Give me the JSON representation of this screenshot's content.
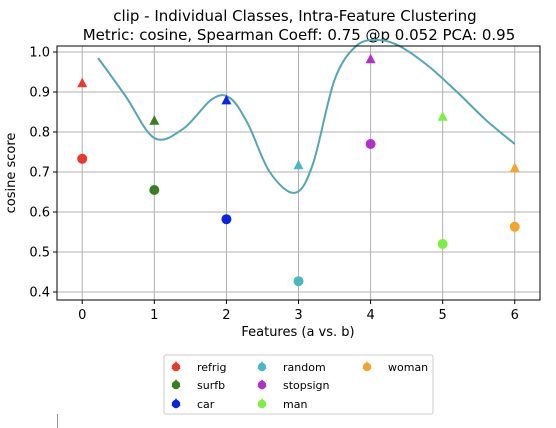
{
  "chart_data": {
    "type": "scatter",
    "title_line1": "clip - Individual Classes, Intra-Feature Clustering",
    "title_line2": "Metric: cosine, Spearman Coeff: 0.75 @p 0.052 PCA: 0.95",
    "xlabel": "Features (a vs. b)",
    "ylabel": "cosine score",
    "xlim": [
      -0.35,
      6.35
    ],
    "ylim": [
      0.38,
      1.015
    ],
    "x_ticks": [
      0,
      1,
      2,
      3,
      4,
      5,
      6
    ],
    "x_tick_labels": [
      "0",
      "1",
      "2",
      "3",
      "4",
      "5",
      "6"
    ],
    "y_ticks": [
      0.4,
      0.5,
      0.6,
      0.7,
      0.8,
      0.9,
      1.0
    ],
    "y_tick_labels": [
      "0.4",
      "0.5",
      "0.6",
      "0.7",
      "0.8",
      "0.9",
      "1.0"
    ],
    "grid": true,
    "legend_position": "below",
    "series": [
      {
        "name": "refrig",
        "color": "#e8392a",
        "x": 0,
        "triangle": 0.922,
        "circle": 0.733
      },
      {
        "name": "surfb",
        "color": "#3a7d22",
        "x": 1,
        "triangle": 0.828,
        "circle": 0.655
      },
      {
        "name": "car",
        "color": "#0a24e6",
        "x": 2,
        "triangle": 0.879,
        "circle": 0.582
      },
      {
        "name": "random",
        "color": "#4ab8c1",
        "x": 3,
        "triangle": 0.717,
        "circle": 0.427
      },
      {
        "name": "stopsign",
        "color": "#b42fc9",
        "x": 4,
        "triangle": 0.982,
        "circle": 0.77
      },
      {
        "name": "man",
        "color": "#7cf042",
        "x": 5,
        "triangle": 0.838,
        "circle": 0.52
      },
      {
        "name": "woman",
        "color": "#f2a42c",
        "x": 6,
        "triangle": 0.71,
        "circle": 0.563
      }
    ],
    "trend_curve": {
      "color": "#55a6b5",
      "x": [
        0.22,
        0.6,
        1.0,
        1.4,
        1.8,
        2.05,
        2.3,
        2.6,
        2.95,
        3.2,
        3.5,
        3.8,
        4.1,
        4.4,
        4.8,
        5.2,
        5.6,
        6.0
      ],
      "y": [
        0.985,
        0.89,
        0.785,
        0.808,
        0.882,
        0.885,
        0.82,
        0.7,
        0.648,
        0.72,
        0.93,
        1.015,
        1.03,
        1.015,
        0.965,
        0.9,
        0.83,
        0.77
      ]
    }
  }
}
